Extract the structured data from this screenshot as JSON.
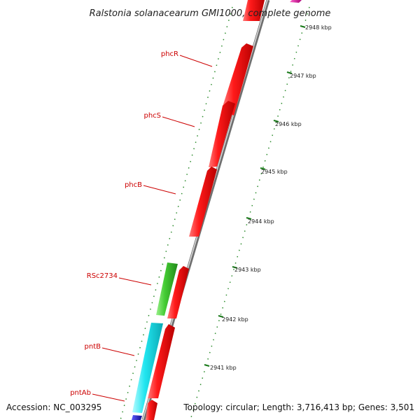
{
  "title": "Ralstonia solanacearum GMI1000, complete genome",
  "footer": {
    "accession": "Accession: NC_003295",
    "summary": "Topology: circular; Length: 3,716,413 bp; Genes: 3,501"
  },
  "colors": {
    "forward_gene": "#ee1111",
    "cds_green": "#44cc33",
    "cds_cyan": "#22e6f0",
    "cds_blue": "#1c1ccc",
    "cds_magenta": "#dd1199",
    "label_color": "#cc0000",
    "tick_color": "#1a7a1a",
    "backbone": "#999999"
  },
  "genes": [
    {
      "name": "phcR",
      "label": "phcR"
    },
    {
      "name": "phcS",
      "label": "phcS"
    },
    {
      "name": "phcB",
      "label": "phcB"
    },
    {
      "name": "RSc2734",
      "label": "RSc2734"
    },
    {
      "name": "pntB",
      "label": "pntB"
    },
    {
      "name": "pntAb",
      "label": "pntAb"
    }
  ],
  "kbp_labels": [
    "2948 kbp",
    "2947 kbp",
    "2946 kbp",
    "2945 kbp",
    "2944 kbp",
    "2943 kbp",
    "2942 kbp",
    "2941 kbp"
  ]
}
